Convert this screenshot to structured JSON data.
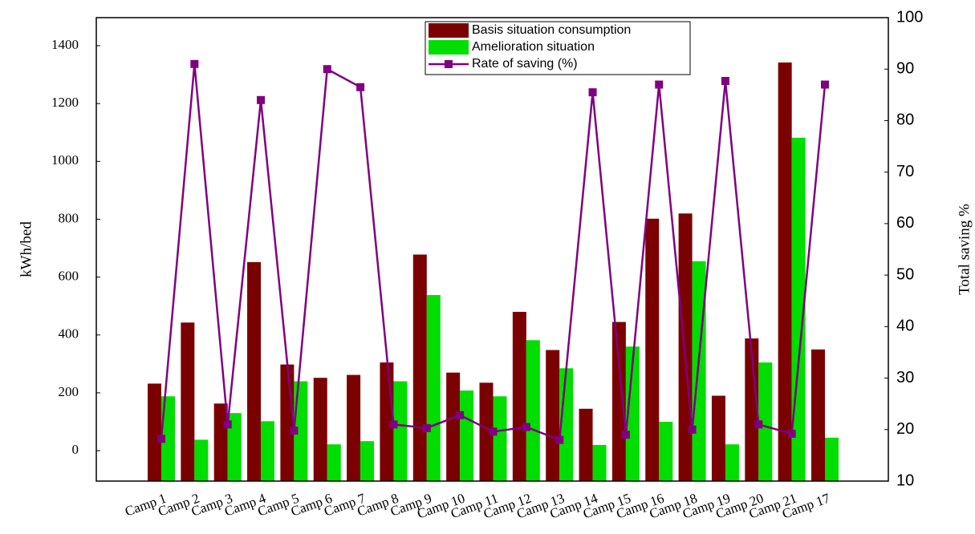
{
  "chart_data": {
    "type": "bar-line",
    "y_label": "kWh/bed",
    "y2_label": "Total saving %",
    "categories": [
      "Camp 1",
      "Camp 2",
      "Camp 3",
      "Camp 4",
      "Camp 5",
      "Camp 6",
      "Camp 7",
      "Camp 8",
      "Camp 9",
      "Camp 10",
      "Camp 11",
      "Camp 12",
      "Camp 13",
      "Camp 14",
      "Camp 15",
      "Camp 16",
      "Camp 18",
      "Camp 19",
      "Camp 20",
      "Camp 21",
      "Camp 17"
    ],
    "series": [
      {
        "name": "Basis situation consumption",
        "type": "bar",
        "color": "#7b0000",
        "values": [
          232,
          443,
          163,
          652,
          298,
          252,
          262,
          305,
          678,
          270,
          235,
          480,
          348,
          145,
          445,
          802,
          820,
          190,
          388,
          1342,
          350
        ]
      },
      {
        "name": "Amelioration situation",
        "type": "bar",
        "color": "#00dd00",
        "values": [
          188,
          38,
          130,
          102,
          240,
          22,
          33,
          240,
          538,
          208,
          188,
          382,
          285,
          20,
          360,
          100,
          655,
          22,
          305,
          1082,
          45
        ]
      },
      {
        "name": "Rate of saving (%)",
        "type": "line",
        "axis": "y2",
        "color": "#800080",
        "values": [
          18.2,
          91,
          21,
          84,
          19.8,
          90,
          86.5,
          21,
          20.3,
          22.8,
          19.6,
          20.5,
          18,
          85.5,
          19,
          87,
          20,
          87.7,
          21,
          19.2,
          87
        ]
      }
    ],
    "ylim": [
      -105,
      1497
    ],
    "yticks": [
      0,
      200,
      400,
      600,
      800,
      1000,
      1200,
      1400
    ],
    "y2lim": [
      10,
      100
    ],
    "y2ticks": [
      10,
      20,
      30,
      40,
      50,
      60,
      70,
      80,
      90,
      100
    ],
    "legend": "top"
  }
}
